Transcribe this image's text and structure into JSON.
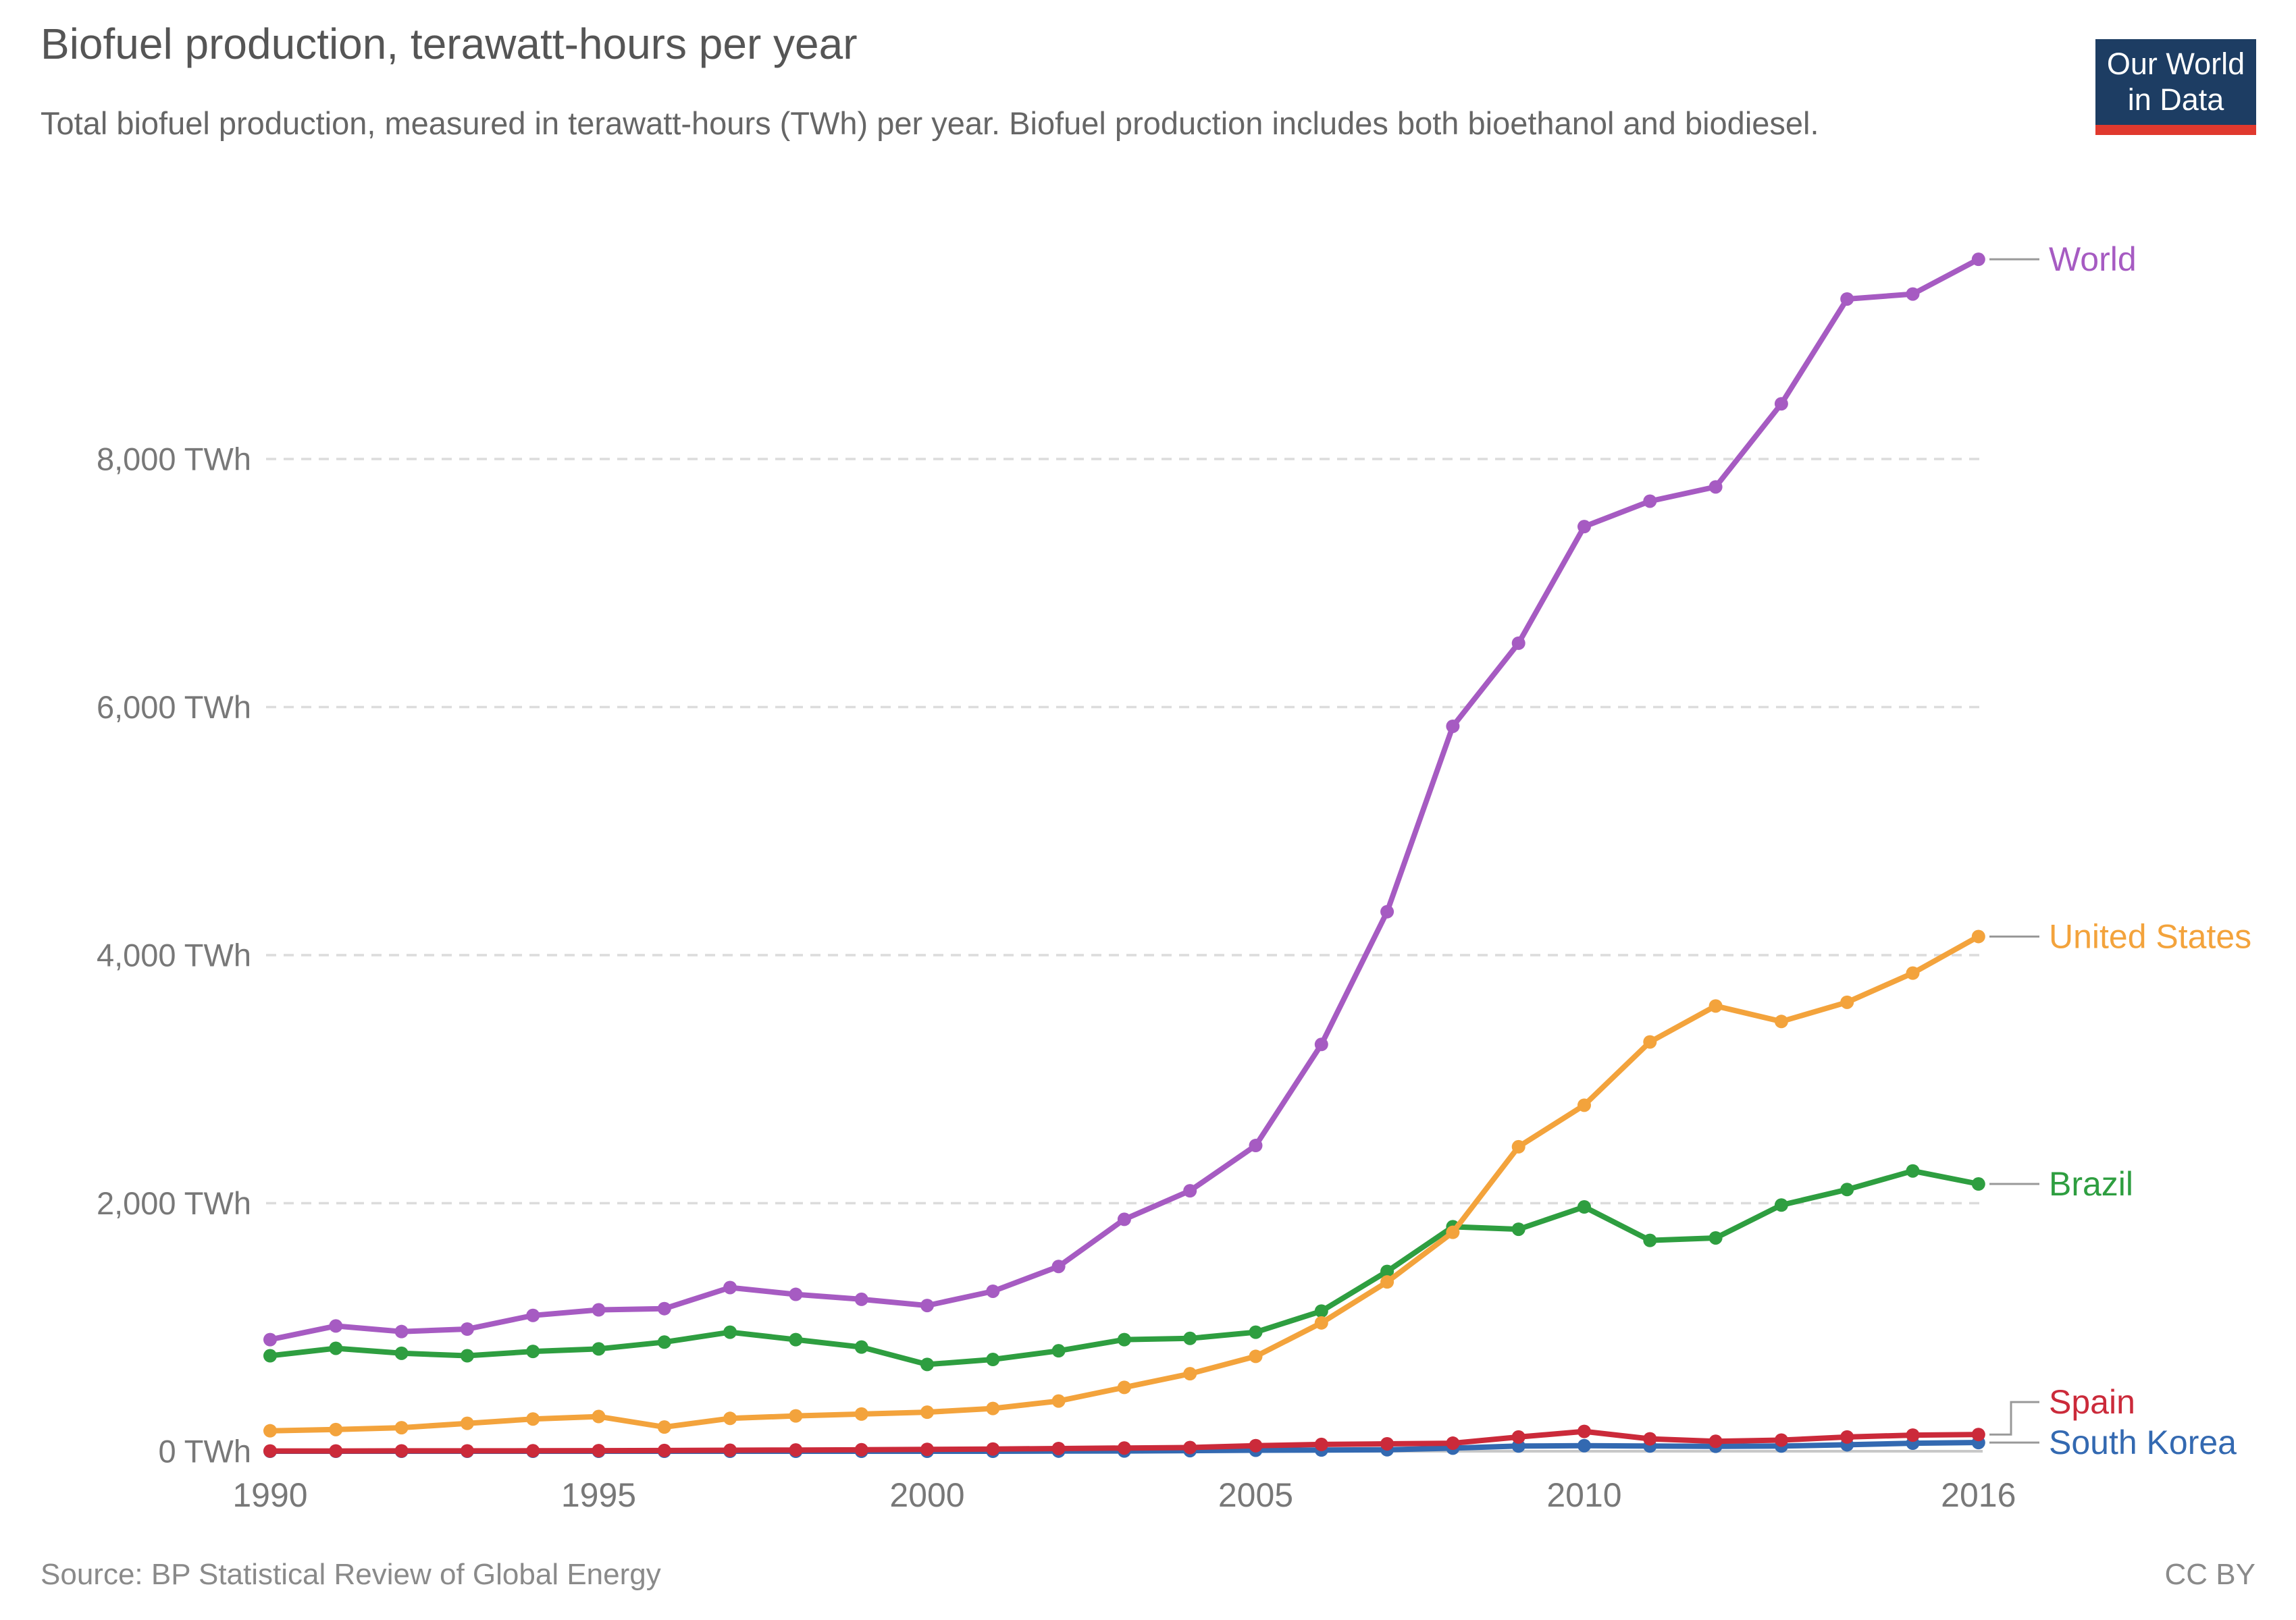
{
  "header": {
    "title": "Biofuel production, terawatt-hours per year",
    "subtitle": "Total biofuel production, measured in terawatt-hours (TWh) per year. Biofuel production includes both bioethanol and biodiesel."
  },
  "logo": {
    "line1": "Our World",
    "line2": "in Data",
    "bg_color": "#1d3d63",
    "bar_color": "#e0392e"
  },
  "footer": {
    "source": "Source: BP Statistical Review of Global Energy",
    "license": "CC BY"
  },
  "chart_data": {
    "type": "line",
    "title": "Biofuel production, terawatt-hours per year",
    "xlabel": "",
    "ylabel": "TWh",
    "x": [
      1990,
      1991,
      1992,
      1993,
      1994,
      1995,
      1996,
      1997,
      1998,
      1999,
      2000,
      2001,
      2002,
      2003,
      2004,
      2005,
      2006,
      2007,
      2008,
      2009,
      2010,
      2011,
      2012,
      2013,
      2014,
      2015,
      2016
    ],
    "x_ticks": [
      1990,
      1995,
      2000,
      2005,
      2010,
      2016
    ],
    "y_ticks": [
      {
        "value": 0,
        "label": "0 TWh"
      },
      {
        "value": 2000,
        "label": "2,000 TWh"
      },
      {
        "value": 4000,
        "label": "4,000 TWh"
      },
      {
        "value": 6000,
        "label": "6,000 TWh"
      },
      {
        "value": 8000,
        "label": "8,000 TWh"
      }
    ],
    "ylim": [
      0,
      9800
    ],
    "grid": "dashed-horizontal",
    "legend_position": "right-of-line",
    "series": [
      {
        "name": "World",
        "color": "#a65bc2",
        "values": [
          900,
          1010,
          965,
          985,
          1095,
          1140,
          1150,
          1320,
          1265,
          1225,
          1175,
          1290,
          1490,
          1870,
          2100,
          2465,
          3280,
          4350,
          5845,
          6515,
          7455,
          7660,
          7775,
          8445,
          9290,
          9330,
          9610
        ]
      },
      {
        "name": "Brazil",
        "color": "#2e9e40",
        "values": [
          770,
          830,
          790,
          770,
          805,
          825,
          880,
          960,
          900,
          840,
          700,
          740,
          810,
          900,
          910,
          960,
          1130,
          1450,
          1810,
          1790,
          1970,
          1700,
          1720,
          1985,
          2110,
          2260,
          2155
        ]
      },
      {
        "name": "United States",
        "color": "#f3a33c",
        "values": [
          165,
          175,
          190,
          225,
          260,
          280,
          195,
          265,
          285,
          300,
          315,
          345,
          405,
          515,
          625,
          765,
          1035,
          1365,
          1765,
          2455,
          2790,
          3300,
          3590,
          3465,
          3620,
          3855,
          4150
        ]
      },
      {
        "name": "South Korea",
        "color": "#3369b1",
        "values": [
          0,
          0,
          0,
          0,
          0,
          0,
          0,
          0,
          0,
          0,
          0,
          0,
          1,
          2,
          5,
          8,
          10,
          12,
          25,
          42,
          45,
          42,
          40,
          42,
          52,
          65,
          70
        ]
      },
      {
        "name": "Spain",
        "color": "#cb2a3a",
        "values": [
          2,
          2,
          3,
          3,
          4,
          5,
          6,
          8,
          10,
          12,
          15,
          18,
          22,
          26,
          30,
          45,
          55,
          60,
          65,
          115,
          160,
          100,
          80,
          90,
          115,
          130,
          135
        ]
      }
    ]
  }
}
